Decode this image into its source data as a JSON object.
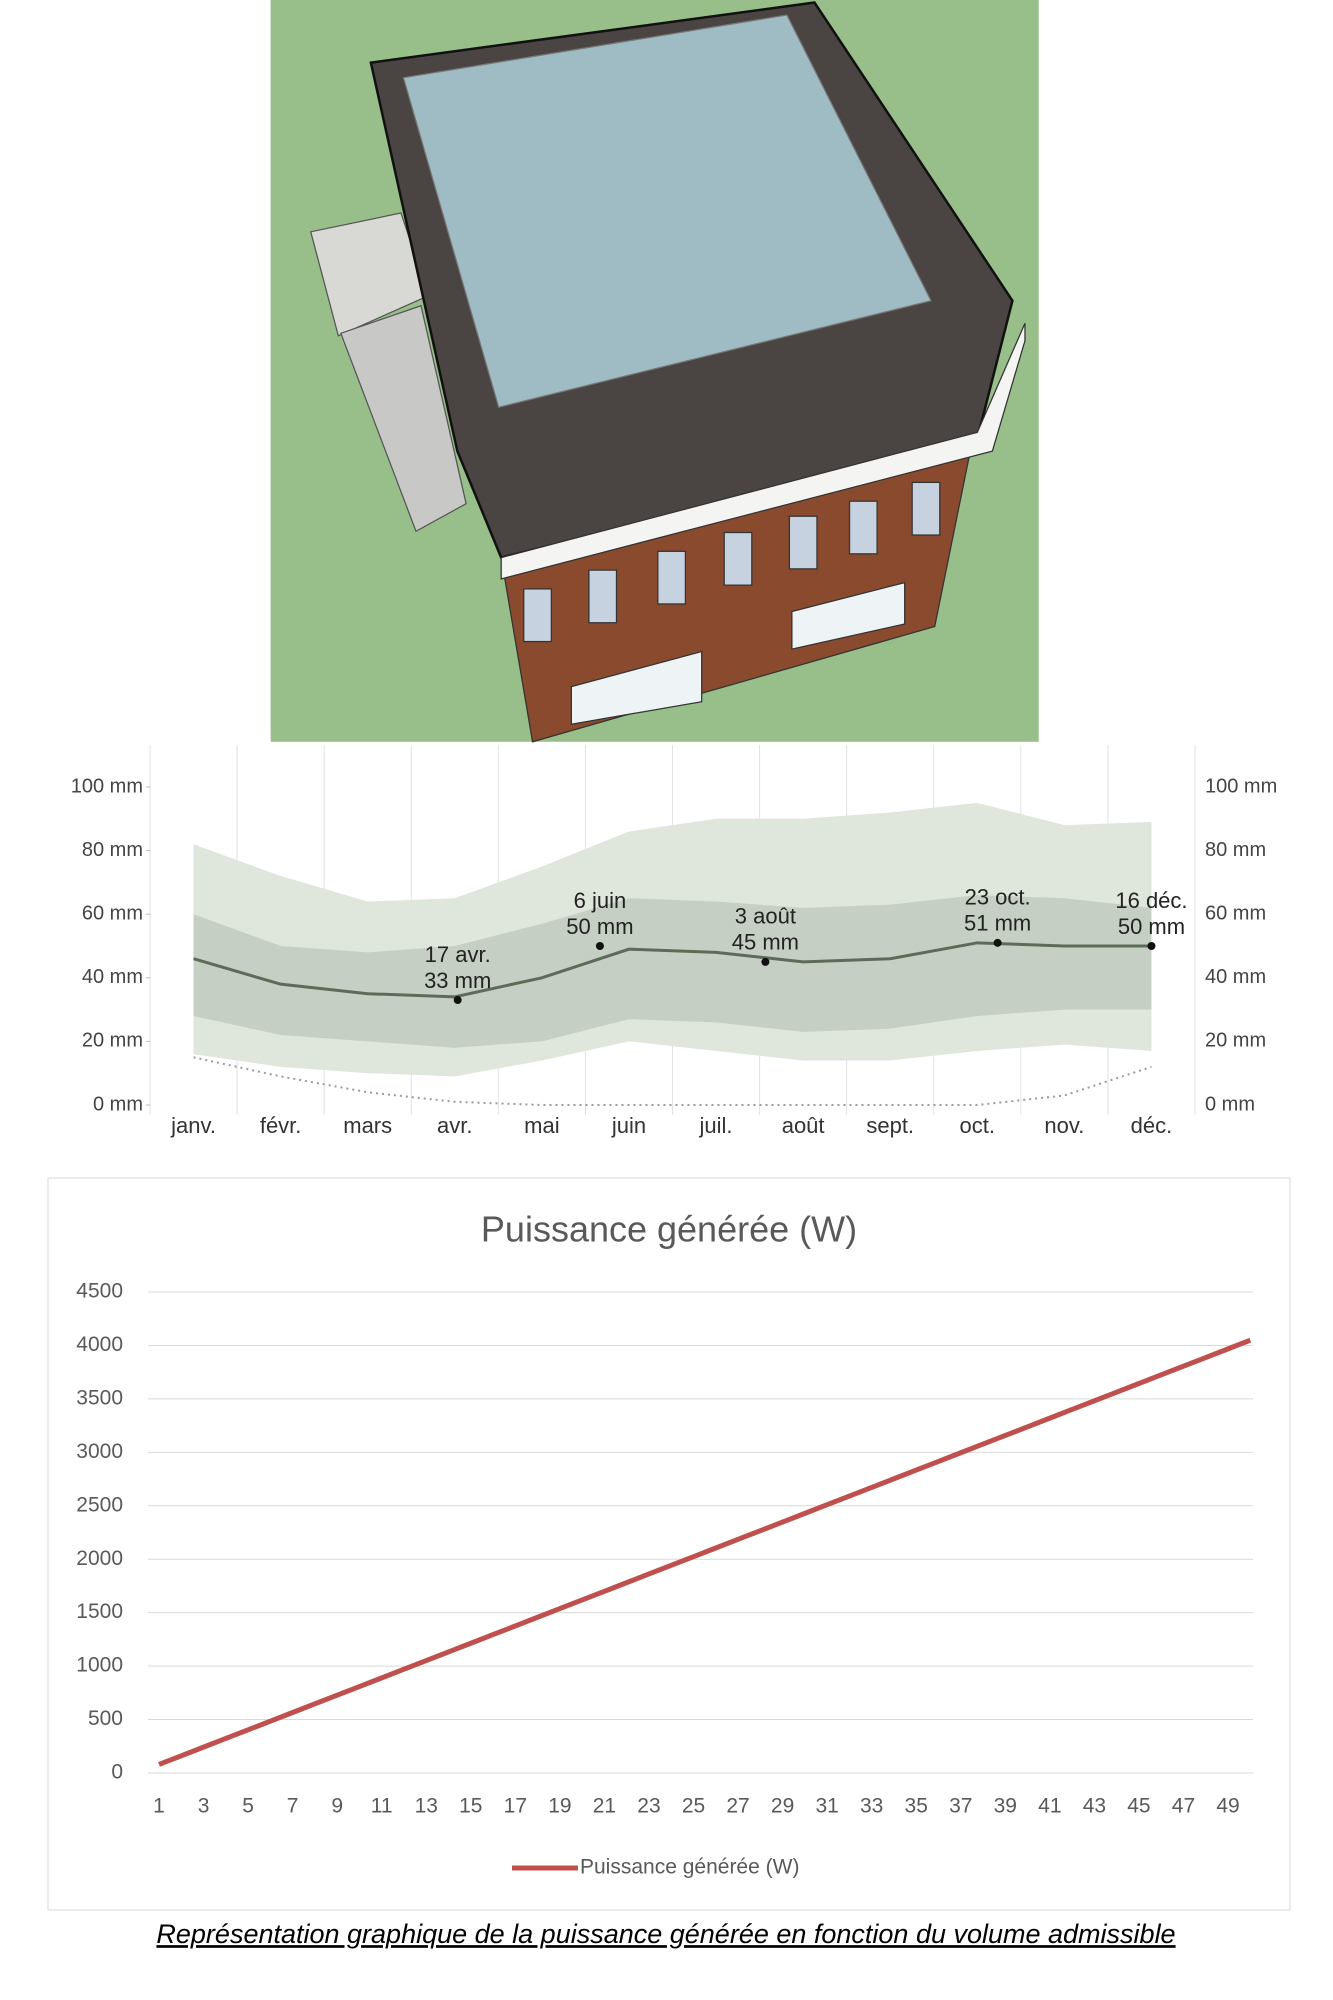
{
  "chart_data": [
    {
      "type": "area",
      "categories": [
        "janv.",
        "févr.",
        "mars",
        "avr.",
        "mai",
        "juin",
        "juil.",
        "août",
        "sept.",
        "oct.",
        "nov.",
        "déc."
      ],
      "ylim": [
        0,
        100
      ],
      "yticks": [
        {
          "value": 0,
          "label": "0 mm"
        },
        {
          "value": 20,
          "label": "20 mm"
        },
        {
          "value": 40,
          "label": "40 mm"
        },
        {
          "value": 60,
          "label": "60 mm"
        },
        {
          "value": 80,
          "label": "80 mm"
        },
        {
          "value": 100,
          "label": "100 mm"
        }
      ],
      "series": [
        {
          "color": "#dfe6dc",
          "values": [
            82,
            72,
            64,
            65,
            75,
            86,
            90,
            90,
            92,
            95,
            88,
            89
          ],
          "lower": [
            16,
            12,
            10,
            9,
            14,
            20,
            17,
            14,
            14,
            17,
            19,
            17
          ]
        },
        {
          "color": "#c5cfc3",
          "values": [
            60,
            50,
            48,
            50,
            57,
            65,
            64,
            62,
            63,
            66,
            65,
            62
          ],
          "lower": [
            28,
            22,
            20,
            18,
            20,
            27,
            26,
            23,
            24,
            28,
            30,
            30
          ]
        },
        {
          "color": "#5d6b59",
          "values": [
            46,
            38,
            35,
            34,
            40,
            49,
            48,
            45,
            46,
            51,
            50,
            50
          ]
        },
        {
          "color": "#9a9a9a",
          "dashed": true,
          "values": [
            15,
            9,
            4,
            1,
            0,
            0,
            0,
            0,
            0,
            0,
            3,
            12
          ]
        }
      ],
      "annotations": [
        {
          "date": "17 avr.",
          "value": 33,
          "value_label": "33 mm"
        },
        {
          "date": "6 juin",
          "value": 50,
          "value_label": "50 mm"
        },
        {
          "date": "3 août",
          "value": 45,
          "value_label": "45 mm"
        },
        {
          "date": "23 oct.",
          "value": 51,
          "value_label": "51 mm"
        },
        {
          "date": "16 déc.",
          "value": 50,
          "value_label": "50 mm"
        }
      ]
    },
    {
      "type": "line",
      "title": "Puissance générée (W)",
      "categories": [
        1,
        null,
        3,
        null,
        5,
        null,
        7,
        null,
        9,
        null,
        11,
        null,
        13,
        null,
        15,
        null,
        17,
        null,
        19,
        null,
        21,
        null,
        23,
        null,
        25,
        null,
        27,
        null,
        29,
        null,
        31,
        null,
        33,
        null,
        35,
        null,
        37,
        null,
        39,
        null,
        41,
        null,
        43,
        null,
        45,
        null,
        47,
        null,
        49,
        null
      ],
      "ylim": [
        0,
        4500
      ],
      "yticks": [
        0,
        500,
        1000,
        1500,
        2000,
        2500,
        3000,
        3500,
        4000,
        4500
      ],
      "grid": true,
      "legend": "bottom",
      "series": [
        {
          "name": "Puissance générée (W)",
          "color": "#c0504d",
          "values": [
            80,
            161,
            242,
            323,
            404,
            485,
            566,
            647,
            728,
            809,
            890,
            971,
            1052,
            1133,
            1214,
            1295,
            1376,
            1457,
            1538,
            1619,
            1700,
            1781,
            1862,
            1943,
            2024,
            2105,
            2186,
            2267,
            2348,
            2429,
            2510,
            2591,
            2672,
            2753,
            2834,
            2915,
            2996,
            3077,
            3158,
            3239,
            3320,
            3401,
            3482,
            3563,
            3644,
            3725,
            3806,
            3887,
            3968,
            4049
          ]
        }
      ]
    }
  ],
  "caption": "Représentation graphique de la puissance générée en fonction du volume admissible"
}
